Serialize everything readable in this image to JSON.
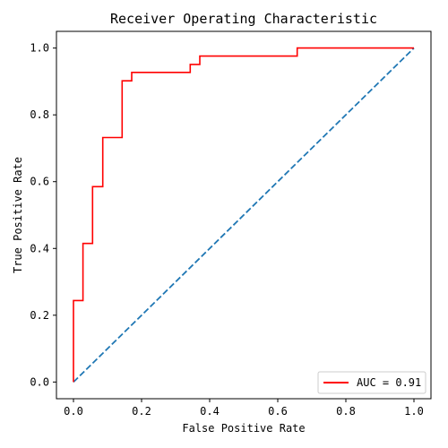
{
  "chart_data": {
    "type": "line",
    "title": "Receiver Operating Characteristic",
    "xlabel": "False Positive Rate",
    "ylabel": "True Positive Rate",
    "xlim": [
      -0.05,
      1.05
    ],
    "ylim": [
      -0.05,
      1.05
    ],
    "xticks": [
      "0.0",
      "0.2",
      "0.4",
      "0.6",
      "0.8",
      "1.0"
    ],
    "yticks": [
      "0.0",
      "0.2",
      "0.4",
      "0.6",
      "0.8",
      "1.0"
    ],
    "grid": false,
    "legend_position": "lower-right",
    "series": [
      {
        "name": "AUC = 0.91",
        "color": "#ff0000",
        "style": "solid",
        "x": [
          0.0,
          0.0,
          0.028,
          0.028,
          0.056,
          0.056,
          0.086,
          0.086,
          0.143,
          0.143,
          0.171,
          0.171,
          0.343,
          0.343,
          0.371,
          0.371,
          0.657,
          0.657,
          1.0
        ],
        "y": [
          0.0,
          0.244,
          0.244,
          0.415,
          0.415,
          0.585,
          0.585,
          0.732,
          0.732,
          0.902,
          0.902,
          0.927,
          0.927,
          0.951,
          0.951,
          0.976,
          0.976,
          1.0,
          1.0
        ]
      },
      {
        "color": "#1f77b4",
        "style": "dashed",
        "x": [
          0,
          1
        ],
        "y": [
          0,
          1
        ]
      }
    ]
  }
}
